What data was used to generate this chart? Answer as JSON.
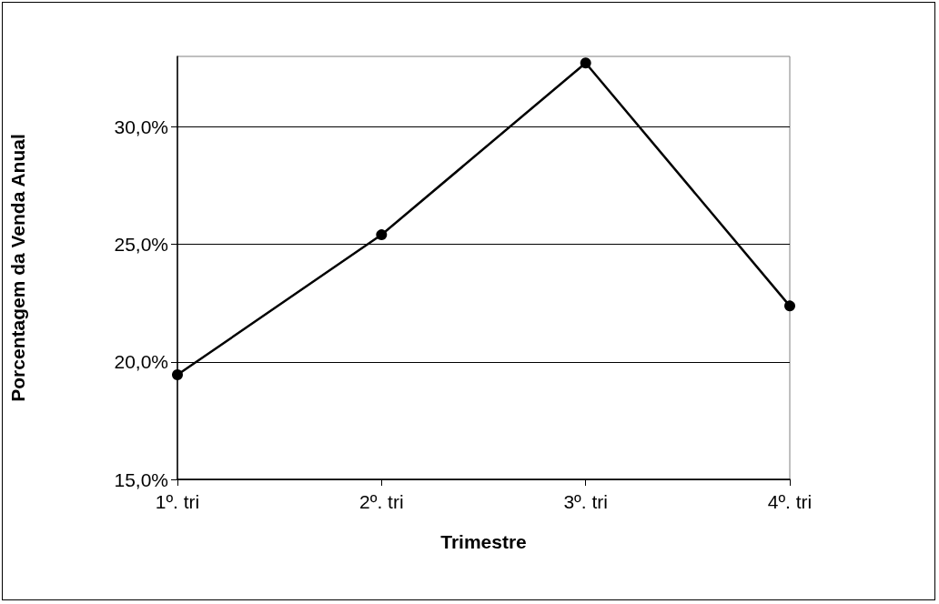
{
  "chart_data": {
    "type": "line",
    "xlabel": "Trimestre",
    "ylabel": "Porcentagem da Venda Anual",
    "categories": [
      "1º. tri",
      "2º. tri",
      "3º. tri",
      "4º. tri"
    ],
    "series": [
      {
        "color": "#000000",
        "values": [
          19.45,
          25.41,
          32.72,
          22.38
        ]
      }
    ],
    "ylim": [
      15,
      33
    ],
    "yticks": [
      {
        "value": 15,
        "label": "15,0%"
      },
      {
        "value": 20,
        "label": "20,0%"
      },
      {
        "value": 25,
        "label": "25,0%"
      },
      {
        "value": 30,
        "label": "30,0%"
      }
    ],
    "grid": "y",
    "marker": "circle",
    "line_style": "solid"
  }
}
